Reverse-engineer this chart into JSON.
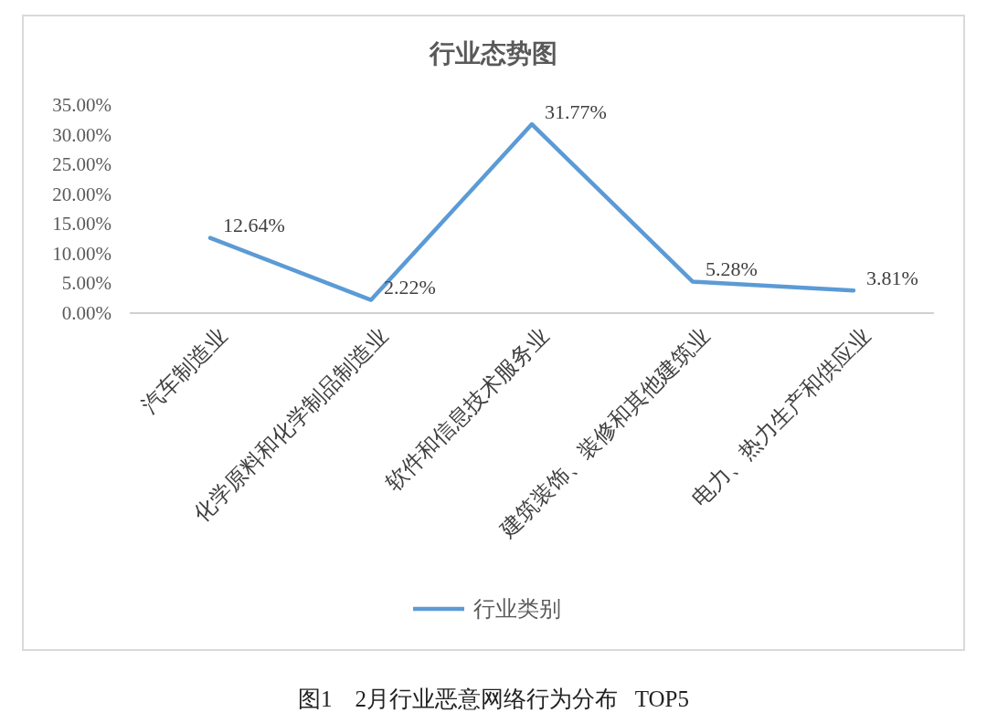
{
  "chart_data": {
    "type": "line",
    "title": "行业态势图",
    "categories": [
      "汽车制造业",
      "化学原料和化学制品制造业",
      "软件和信息技术服务业",
      "建筑装饰、装修和其他建筑业",
      "电力、热力生产和供应业"
    ],
    "series": [
      {
        "name": "行业类别",
        "color": "#5b9bd5",
        "values": [
          12.64,
          2.22,
          31.77,
          5.28,
          3.81
        ],
        "value_labels": [
          "12.64%",
          "2.22%",
          "31.77%",
          "5.28%",
          "3.81%"
        ]
      }
    ],
    "ylim": [
      0,
      35
    ],
    "yticks": [
      {
        "value": 0,
        "label": "0.00%"
      },
      {
        "value": 5,
        "label": "5.00%"
      },
      {
        "value": 10,
        "label": "10.00%"
      },
      {
        "value": 15,
        "label": "15.00%"
      },
      {
        "value": 20,
        "label": "20.00%"
      },
      {
        "value": 25,
        "label": "25.00%"
      },
      {
        "value": 30,
        "label": "30.00%"
      },
      {
        "value": 35,
        "label": "35.00%"
      }
    ],
    "grid": false,
    "legend": "bottom",
    "marker": "none",
    "line_style": "solid",
    "annotations": [
      "图1    2月行业恶意网络行为分布   TOP5"
    ]
  }
}
